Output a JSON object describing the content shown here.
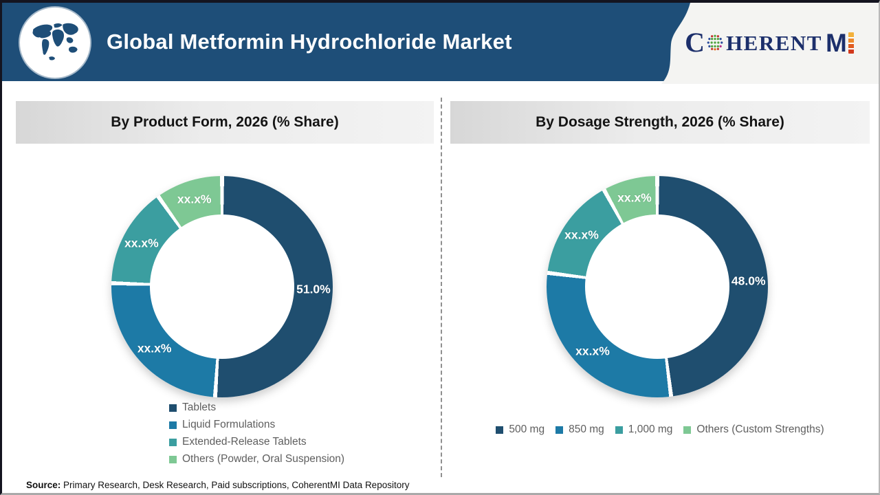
{
  "header": {
    "title": "Global Metformin Hydrochloride Market"
  },
  "logo": {
    "c": "C",
    "herent": "HERENT",
    "m": "M",
    "i": "I",
    "navy": "#1c2f6b",
    "orange": "#e05d22"
  },
  "icons": {
    "world_map": "world-map-icon",
    "globe_dots": "globe-dots-icon"
  },
  "palette": {
    "header_navy": "#1E4E78",
    "slice_navy": "#1F4E6F",
    "slice_blue": "#1D7AA6",
    "slice_teal": "#3B9EA0",
    "slice_green": "#7EC894",
    "legend_text": "#5e5e5e"
  },
  "chart_data": [
    {
      "type": "pie",
      "donut": true,
      "title": "By Product Form, 2026 (% Share)",
      "legend_position": "bottom-column",
      "series": [
        {
          "name": "Tablets",
          "value": 51.0,
          "display": "51.0%",
          "color": "#1F4E6F"
        },
        {
          "name": "Liquid Formulations",
          "value": 24.5,
          "display": "xx.x%",
          "color": "#1D7AA6"
        },
        {
          "name": "Extended-Release Tablets",
          "value": 14.7,
          "display": "xx.x%",
          "color": "#3B9EA0"
        },
        {
          "name": "Others (Powder, Oral Suspension)",
          "value": 9.8,
          "display": "xx.x%",
          "color": "#7EC894"
        }
      ]
    },
    {
      "type": "pie",
      "donut": true,
      "title": "By Dosage Strength, 2026 (% Share)",
      "legend_position": "bottom-row",
      "series": [
        {
          "name": "500 mg",
          "value": 48.0,
          "display": "48.0%",
          "color": "#1F4E6F"
        },
        {
          "name": "850 mg",
          "value": 29.0,
          "display": "xx.x%",
          "color": "#1D7AA6"
        },
        {
          "name": "1,000 mg",
          "value": 15.0,
          "display": "xx.x%",
          "color": "#3B9EA0"
        },
        {
          "name": "Others (Custom Strengths)",
          "value": 8.0,
          "display": "xx.x%",
          "color": "#7EC894"
        }
      ]
    }
  ],
  "source": {
    "label": "Source:",
    "text": " Primary Research, Desk Research, Paid subscriptions, CoherentMI Data Repository"
  }
}
